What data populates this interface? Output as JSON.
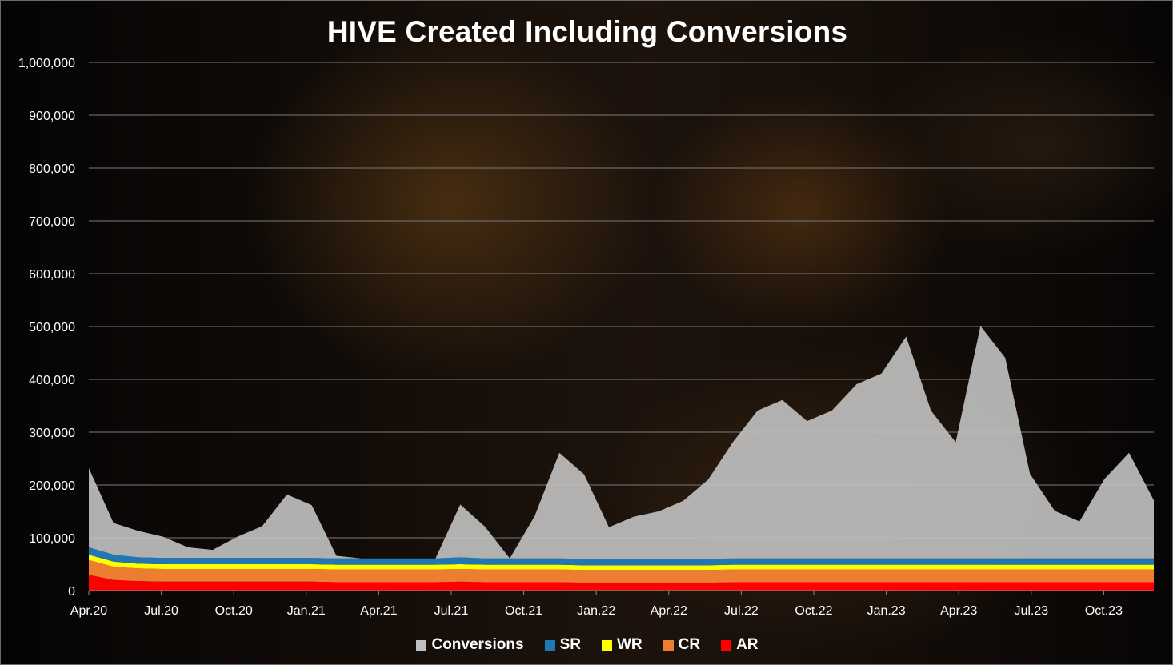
{
  "chart_data": {
    "type": "area",
    "title": "HIVE Created Including Conversions",
    "y_ticks": [
      "0",
      "100,000",
      "200,000",
      "300,000",
      "400,000",
      "500,000",
      "600,000",
      "700,000",
      "800,000",
      "900,000",
      "1,000,000"
    ],
    "ylim": [
      0,
      1000000
    ],
    "x_ticks": [
      "Apr.20",
      "Jul.20",
      "Oct.20",
      "Jan.21",
      "Apr.21",
      "Jul.21",
      "Oct.21",
      "Jan.22",
      "Apr.22",
      "Jul.22",
      "Oct.22",
      "Jan.23",
      "Apr.23",
      "Jul.23",
      "Oct.23"
    ],
    "grid": true,
    "legend_position": "bottom",
    "stacked": true,
    "series": [
      {
        "name": "AR",
        "color": "#ff0000",
        "x": [
          "Apr.20",
          "May.20",
          "Jun.20",
          "Jul.20",
          "Aug.20",
          "Sep.20",
          "Oct.20",
          "Nov.20",
          "Dec.20",
          "Jan.21",
          "Feb.21",
          "Mar.21",
          "Apr.21",
          "May.21",
          "Jun.21",
          "Jul.21",
          "Aug.21",
          "Sep.21",
          "Oct.21",
          "Nov.21",
          "Dec.21",
          "Jan.22",
          "Feb.22",
          "Mar.22",
          "Apr.22",
          "May.22",
          "Jun.22",
          "Jul.22",
          "Aug.22",
          "Sep.22",
          "Oct.22",
          "Nov.22",
          "Dec.22",
          "Jan.23",
          "Feb.23",
          "Mar.23",
          "Apr.23",
          "May.23",
          "Jun.23",
          "Jul.23",
          "Aug.23",
          "Sep.23",
          "Oct.23",
          "Nov.23"
        ],
        "values": [
          30000,
          20000,
          18000,
          17000,
          17000,
          17000,
          17000,
          17000,
          17000,
          17000,
          16000,
          16000,
          16000,
          16000,
          16000,
          17000,
          16000,
          16000,
          16000,
          16000,
          15000,
          15000,
          15000,
          15000,
          15000,
          15000,
          16000,
          16000,
          16000,
          16000,
          16000,
          16000,
          16000,
          16000,
          16000,
          16000,
          16000,
          16000,
          16000,
          16000,
          16000,
          16000,
          16000,
          16000
        ]
      },
      {
        "name": "CR",
        "color": "#ed7d31",
        "x": [
          "Apr.20",
          "May.20",
          "Jun.20",
          "Jul.20",
          "Aug.20",
          "Sep.20",
          "Oct.20",
          "Nov.20",
          "Dec.20",
          "Jan.21",
          "Feb.21",
          "Mar.21",
          "Apr.21",
          "May.21",
          "Jun.21",
          "Jul.21",
          "Aug.21",
          "Sep.21",
          "Oct.21",
          "Nov.21",
          "Dec.21",
          "Jan.22",
          "Feb.22",
          "Mar.22",
          "Apr.22",
          "May.22",
          "Jun.22",
          "Jul.22",
          "Aug.22",
          "Sep.22",
          "Oct.22",
          "Nov.22",
          "Dec.22",
          "Jan.23",
          "Feb.23",
          "Mar.23",
          "Apr.23",
          "May.23",
          "Jun.23",
          "Jul.23",
          "Aug.23",
          "Sep.23",
          "Oct.23",
          "Nov.23"
        ],
        "values": [
          28000,
          25000,
          24000,
          24000,
          24000,
          24000,
          24000,
          24000,
          24000,
          24000,
          24000,
          24000,
          24000,
          24000,
          24000,
          24000,
          24000,
          24000,
          24000,
          24000,
          24000,
          24000,
          24000,
          24000,
          24000,
          24000,
          24000,
          24000,
          24000,
          24000,
          24000,
          24000,
          24000,
          24000,
          24000,
          24000,
          24000,
          24000,
          24000,
          24000,
          24000,
          24000,
          24000,
          24000
        ]
      },
      {
        "name": "WR",
        "color": "#ffff00",
        "x": [
          "Apr.20",
          "May.20",
          "Jun.20",
          "Jul.20",
          "Aug.20",
          "Sep.20",
          "Oct.20",
          "Nov.20",
          "Dec.20",
          "Jan.21",
          "Feb.21",
          "Mar.21",
          "Apr.21",
          "May.21",
          "Jun.21",
          "Jul.21",
          "Aug.21",
          "Sep.21",
          "Oct.21",
          "Nov.21",
          "Dec.21",
          "Jan.22",
          "Feb.22",
          "Mar.22",
          "Apr.22",
          "May.22",
          "Jun.22",
          "Jul.22",
          "Aug.22",
          "Sep.22",
          "Oct.22",
          "Nov.22",
          "Dec.22",
          "Jan.23",
          "Feb.23",
          "Mar.23",
          "Apr.23",
          "May.23",
          "Jun.23",
          "Jul.23",
          "Aug.23",
          "Sep.23",
          "Oct.23",
          "Nov.23"
        ],
        "values": [
          10000,
          10000,
          9000,
          9000,
          9000,
          9000,
          9000,
          9000,
          9000,
          9000,
          9000,
          9000,
          9000,
          9000,
          9000,
          9000,
          9000,
          9000,
          9000,
          9000,
          9000,
          9000,
          9000,
          9000,
          9000,
          9000,
          9000,
          9000,
          9000,
          9000,
          9000,
          9000,
          9000,
          9000,
          9000,
          9000,
          9000,
          9000,
          9000,
          9000,
          9000,
          9000,
          9000,
          9000
        ]
      },
      {
        "name": "SR",
        "color": "#1f77b4",
        "x": [
          "Apr.20",
          "May.20",
          "Jun.20",
          "Jul.20",
          "Aug.20",
          "Sep.20",
          "Oct.20",
          "Nov.20",
          "Dec.20",
          "Jan.21",
          "Feb.21",
          "Mar.21",
          "Apr.21",
          "May.21",
          "Jun.21",
          "Jul.21",
          "Aug.21",
          "Sep.21",
          "Oct.21",
          "Nov.21",
          "Dec.21",
          "Jan.22",
          "Feb.22",
          "Mar.22",
          "Apr.22",
          "May.22",
          "Jun.22",
          "Jul.22",
          "Aug.22",
          "Sep.22",
          "Oct.22",
          "Nov.22",
          "Dec.22",
          "Jan.23",
          "Feb.23",
          "Mar.23",
          "Apr.23",
          "May.23",
          "Jun.23",
          "Jul.23",
          "Aug.23",
          "Sep.23",
          "Oct.23",
          "Nov.23"
        ],
        "values": [
          14000,
          13000,
          12000,
          12000,
          12000,
          12000,
          12000,
          12000,
          12000,
          12000,
          12000,
          12000,
          12000,
          12000,
          12000,
          13000,
          12000,
          12000,
          12000,
          12000,
          12000,
          12000,
          12000,
          12000,
          12000,
          12000,
          12000,
          12000,
          12000,
          12000,
          12000,
          12000,
          12000,
          12000,
          12000,
          12000,
          12000,
          12000,
          12000,
          12000,
          12000,
          12000,
          12000,
          12000
        ]
      },
      {
        "name": "Conversions",
        "color": "#bfbfbf",
        "x": [
          "Apr.20",
          "May.20",
          "Jun.20",
          "Jul.20",
          "Aug.20",
          "Sep.20",
          "Oct.20",
          "Nov.20",
          "Dec.20",
          "Jan.21",
          "Feb.21",
          "Mar.21",
          "Apr.21",
          "May.21",
          "Jun.21",
          "Jul.21",
          "Aug.21",
          "Sep.21",
          "Oct.21",
          "Nov.21",
          "Dec.21",
          "Jan.22",
          "Feb.22",
          "Mar.22",
          "Apr.22",
          "May.22",
          "Jun.22",
          "Jul.22",
          "Aug.22",
          "Sep.22",
          "Oct.22",
          "Nov.22",
          "Dec.22",
          "Jan.23",
          "Feb.23",
          "Mar.23",
          "Apr.23",
          "May.23",
          "Jun.23",
          "Jul.23",
          "Aug.23",
          "Sep.23",
          "Oct.23",
          "Nov.23"
        ],
        "values": [
          150000,
          60000,
          50000,
          40000,
          20000,
          15000,
          40000,
          60000,
          120000,
          100000,
          5000,
          0,
          0,
          0,
          0,
          100000,
          60000,
          0,
          80000,
          200000,
          160000,
          60000,
          80000,
          90000,
          110000,
          150000,
          220000,
          280000,
          300000,
          260000,
          280000,
          330000,
          350000,
          420000,
          280000,
          220000,
          440000,
          380000,
          160000,
          90000,
          70000,
          150000,
          200000,
          110000
        ]
      }
    ]
  },
  "legend": [
    {
      "label": "Conversions",
      "color": "#bfbfbf"
    },
    {
      "label": "SR",
      "color": "#1f77b4"
    },
    {
      "label": "WR",
      "color": "#ffff00"
    },
    {
      "label": "CR",
      "color": "#ed7d31"
    },
    {
      "label": "AR",
      "color": "#ff0000"
    }
  ]
}
